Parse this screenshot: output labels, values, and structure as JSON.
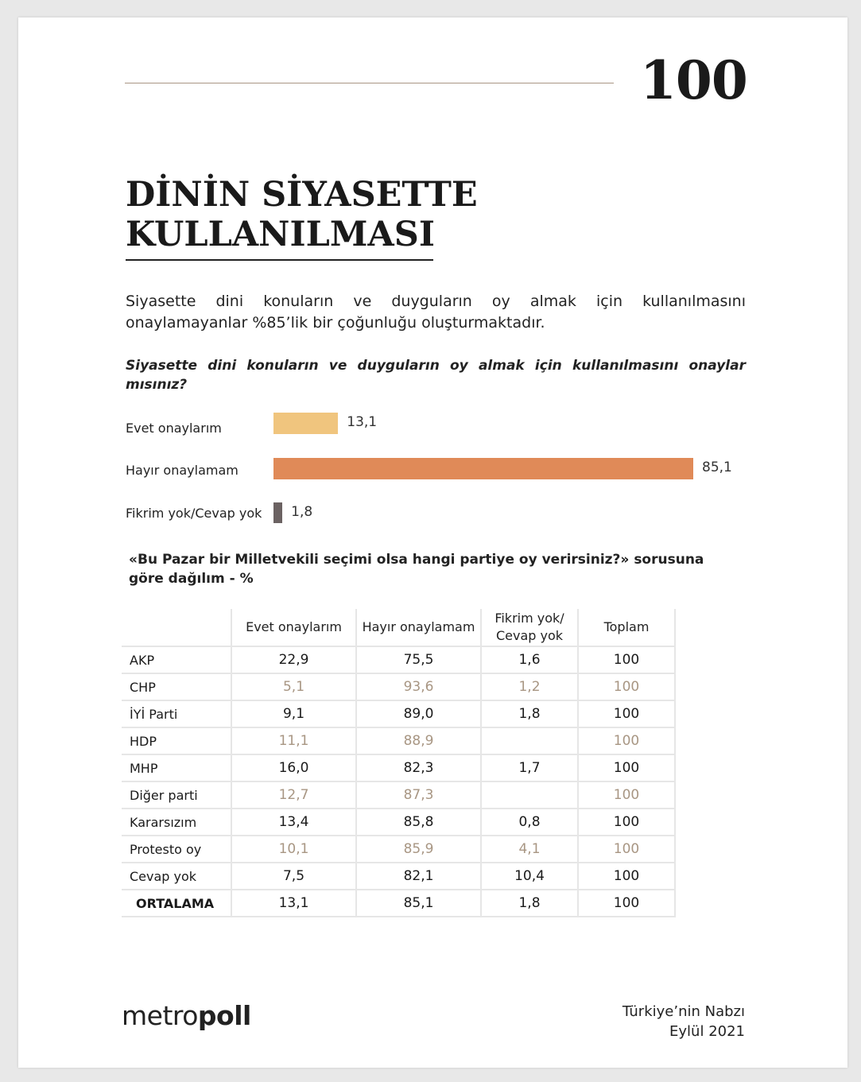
{
  "page_number": "100",
  "title_lines": [
    "DİNİN SİYASETTE",
    "KULLANILMASI"
  ],
  "lead": "Siyasette dini konuların ve duyguların oy almak için kullanılmasını onaylamayanlar %85’lik bir çoğunluğu oluşturmaktadır.",
  "question": "Siyasette dini konuların ve duyguların oy almak için kullanılmasını onaylar mısınız?",
  "chart_data": {
    "type": "bar",
    "orientation": "horizontal",
    "categories": [
      "Evet onaylarım",
      "Hayır onaylamam",
      "Fikrim yok/Cevap yok"
    ],
    "values": [
      13.1,
      85.1,
      1.8
    ],
    "value_labels": [
      "13,1",
      "85,1",
      "1,8"
    ],
    "colors": [
      "#f0c57e",
      "#e08a58",
      "#6b6262"
    ],
    "xlim": [
      0,
      100
    ],
    "grid": false
  },
  "table_question": "«Bu Pazar bir Milletvekili seçimi olsa hangi partiye oy verirsiniz?» sorusuna göre dağılım - %",
  "table": {
    "headers": [
      "",
      "Evet onaylarım",
      "Hayır onaylamam",
      "Fikrim yok/ Cevap yok",
      "Toplam"
    ],
    "rows": [
      {
        "label": "AKP",
        "cells": [
          "22,9",
          "75,5",
          "1,6",
          "100"
        ],
        "muted": false
      },
      {
        "label": "CHP",
        "cells": [
          "5,1",
          "93,6",
          "1,2",
          "100"
        ],
        "muted": true
      },
      {
        "label": "İYİ Parti",
        "cells": [
          "9,1",
          "89,0",
          "1,8",
          "100"
        ],
        "muted": false
      },
      {
        "label": "HDP",
        "cells": [
          "11,1",
          "88,9",
          "",
          "100"
        ],
        "muted": true
      },
      {
        "label": "MHP",
        "cells": [
          "16,0",
          "82,3",
          "1,7",
          "100"
        ],
        "muted": false
      },
      {
        "label": "Diğer parti",
        "cells": [
          "12,7",
          "87,3",
          "",
          "100"
        ],
        "muted": true
      },
      {
        "label": "Kararsızım",
        "cells": [
          "13,4",
          "85,8",
          "0,8",
          "100"
        ],
        "muted": false
      },
      {
        "label": "Protesto oy",
        "cells": [
          "10,1",
          "85,9",
          "4,1",
          "100"
        ],
        "muted": true
      },
      {
        "label": "Cevap yok",
        "cells": [
          "7,5",
          "82,1",
          "10,4",
          "100"
        ],
        "muted": false
      },
      {
        "label": "ORTALAMA",
        "cells": [
          "13,1",
          "85,1",
          "1,8",
          "100"
        ],
        "muted": false
      }
    ],
    "muted_color": "#a89683"
  },
  "footer": {
    "logo": "metropoll",
    "logo_parts": [
      "metro",
      "poll"
    ],
    "publication": "Türkiye’nin Nabzı",
    "date": "Eylül 2021"
  }
}
